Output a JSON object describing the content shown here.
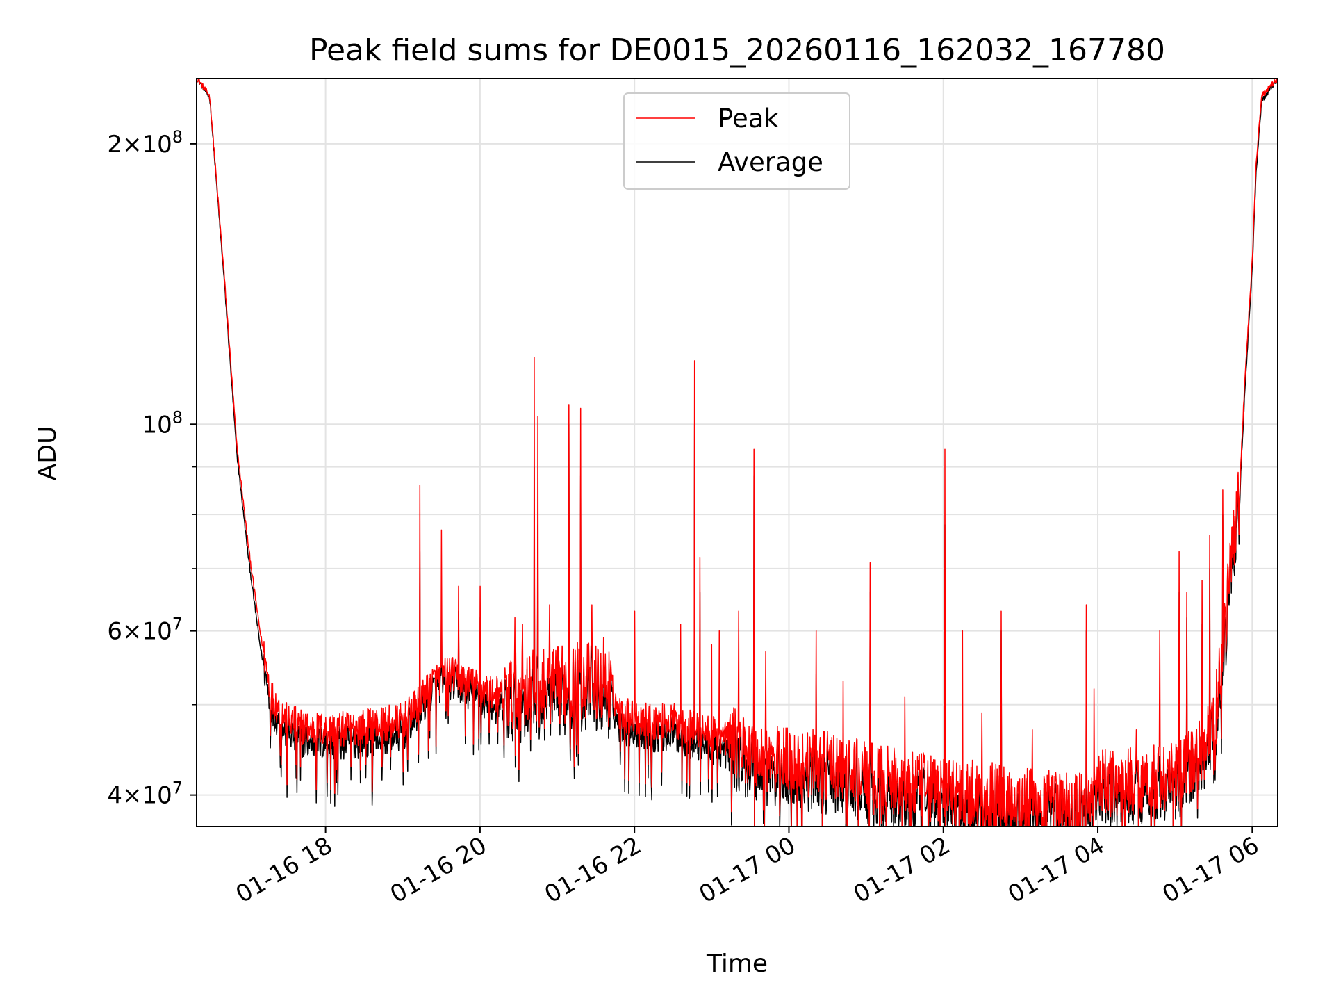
{
  "chart_data": {
    "type": "line",
    "title": "Peak field sums for DE0015_20260116_162032_167780",
    "xlabel": "Time",
    "ylabel": "ADU",
    "y_scale": "log",
    "ylim": [
      37000000,
      235000000
    ],
    "x_units": "hours since 01-16 00:00",
    "xlim": [
      16.33,
      30.33
    ],
    "grid": true,
    "legend_position": "upper center",
    "x_ticks": [
      {
        "value": 18,
        "label": "01-16 18"
      },
      {
        "value": 20,
        "label": "01-16 20"
      },
      {
        "value": 22,
        "label": "01-16 22"
      },
      {
        "value": 24,
        "label": "01-17 00"
      },
      {
        "value": 26,
        "label": "01-17 02"
      },
      {
        "value": 28,
        "label": "01-17 04"
      },
      {
        "value": 30,
        "label": "01-17 06"
      }
    ],
    "y_major_ticks": [
      {
        "value": 40000000,
        "mantissa": "4",
        "label": "4 × 10^7"
      },
      {
        "value": 60000000,
        "mantissa": "6",
        "label": "6 × 10^7"
      },
      {
        "value": 100000000,
        "mantissa": "",
        "label": "10^8"
      },
      {
        "value": 200000000,
        "mantissa": "2",
        "label": "2 × 10^8"
      }
    ],
    "y_minor_ticks": [
      50000000,
      70000000,
      80000000,
      90000000
    ],
    "series": [
      {
        "name": "Peak",
        "color": "#ff0000",
        "base": [
          [
            16.34,
            235000000
          ],
          [
            16.5,
            225000000
          ],
          [
            16.7,
            140000000
          ],
          [
            16.85,
            95000000
          ],
          [
            17.0,
            74000000
          ],
          [
            17.15,
            60000000
          ],
          [
            17.3,
            51000000
          ],
          [
            17.5,
            48000000
          ],
          [
            17.8,
            47000000
          ],
          [
            18.2,
            47000000
          ],
          [
            18.6,
            47500000
          ],
          [
            19.0,
            48000000
          ],
          [
            19.2,
            50000000
          ],
          [
            19.4,
            53000000
          ],
          [
            19.6,
            54000000
          ],
          [
            19.8,
            53000000
          ],
          [
            20.0,
            52000000
          ],
          [
            20.3,
            51000000
          ],
          [
            20.6,
            52000000
          ],
          [
            20.9,
            52000000
          ],
          [
            21.2,
            53000000
          ],
          [
            21.5,
            53000000
          ],
          [
            21.7,
            52000000
          ],
          [
            21.8,
            49000000
          ],
          [
            22.2,
            48000000
          ],
          [
            22.5,
            48000000
          ],
          [
            22.8,
            47000000
          ],
          [
            23.2,
            46000000
          ],
          [
            23.6,
            44000000
          ],
          [
            24.0,
            43500000
          ],
          [
            24.5,
            43000000
          ],
          [
            25.0,
            42000000
          ],
          [
            25.5,
            41000000
          ],
          [
            26.0,
            40500000
          ],
          [
            26.5,
            40000000
          ],
          [
            27.0,
            39500000
          ],
          [
            27.5,
            39000000
          ],
          [
            27.8,
            39000000
          ],
          [
            28.0,
            41000000
          ],
          [
            28.5,
            41500000
          ],
          [
            29.0,
            42000000
          ],
          [
            29.3,
            44000000
          ],
          [
            29.5,
            47000000
          ],
          [
            29.6,
            56000000
          ],
          [
            29.7,
            68000000
          ],
          [
            29.8,
            82000000
          ],
          [
            29.85,
            90000000
          ],
          [
            29.9,
            110000000
          ],
          [
            30.0,
            150000000
          ],
          [
            30.05,
            190000000
          ],
          [
            30.12,
            225000000
          ],
          [
            30.33,
            235000000
          ]
        ],
        "spikes": [
          [
            19.22,
            86000000
          ],
          [
            19.5,
            77000000
          ],
          [
            19.72,
            67000000
          ],
          [
            20.0,
            67000000
          ],
          [
            20.45,
            62000000
          ],
          [
            20.55,
            61000000
          ],
          [
            20.7,
            118000000
          ],
          [
            20.75,
            102000000
          ],
          [
            20.9,
            64000000
          ],
          [
            21.15,
            105000000
          ],
          [
            21.3,
            104000000
          ],
          [
            21.45,
            64000000
          ],
          [
            21.6,
            59000000
          ],
          [
            22.0,
            63000000
          ],
          [
            22.6,
            61000000
          ],
          [
            22.78,
            117000000
          ],
          [
            22.85,
            72000000
          ],
          [
            23.0,
            58000000
          ],
          [
            23.1,
            60000000
          ],
          [
            23.35,
            63000000
          ],
          [
            23.55,
            94000000
          ],
          [
            23.7,
            57000000
          ],
          [
            24.35,
            60000000
          ],
          [
            24.7,
            53000000
          ],
          [
            25.05,
            71000000
          ],
          [
            25.5,
            51000000
          ],
          [
            26.02,
            94000000
          ],
          [
            26.25,
            60000000
          ],
          [
            26.5,
            49000000
          ],
          [
            26.75,
            63000000
          ],
          [
            27.15,
            47000000
          ],
          [
            27.85,
            64000000
          ],
          [
            27.95,
            52000000
          ],
          [
            28.5,
            47000000
          ],
          [
            28.8,
            60000000
          ],
          [
            29.05,
            73000000
          ],
          [
            29.15,
            66000000
          ],
          [
            29.35,
            68000000
          ],
          [
            29.45,
            76000000
          ],
          [
            29.62,
            85000000
          ]
        ],
        "noise_amplitude": 0.045,
        "samples": 2400
      },
      {
        "name": "Average",
        "color": "#000000",
        "base": [
          [
            16.34,
            235000000
          ],
          [
            16.5,
            224000000
          ],
          [
            16.7,
            138000000
          ],
          [
            16.85,
            93000000
          ],
          [
            17.0,
            72000000
          ],
          [
            17.15,
            58000000
          ],
          [
            17.3,
            49500000
          ],
          [
            17.5,
            46500000
          ],
          [
            17.8,
            45500000
          ],
          [
            18.2,
            45500000
          ],
          [
            18.6,
            46000000
          ],
          [
            19.0,
            46500000
          ],
          [
            19.2,
            49000000
          ],
          [
            19.4,
            52000000
          ],
          [
            19.6,
            53000000
          ],
          [
            19.8,
            52000000
          ],
          [
            20.0,
            50500000
          ],
          [
            20.3,
            49500000
          ],
          [
            20.6,
            50500000
          ],
          [
            20.9,
            50500000
          ],
          [
            21.2,
            51500000
          ],
          [
            21.5,
            51500000
          ],
          [
            21.7,
            50500000
          ],
          [
            21.8,
            47500000
          ],
          [
            22.2,
            46500000
          ],
          [
            22.5,
            46500000
          ],
          [
            22.8,
            45500000
          ],
          [
            23.2,
            44500000
          ],
          [
            23.6,
            42500000
          ],
          [
            24.0,
            42000000
          ],
          [
            24.5,
            41500000
          ],
          [
            25.0,
            40500000
          ],
          [
            25.5,
            39500000
          ],
          [
            26.0,
            39000000
          ],
          [
            26.5,
            38800000
          ],
          [
            27.0,
            38300000
          ],
          [
            27.5,
            37900000
          ],
          [
            27.8,
            37900000
          ],
          [
            28.0,
            40000000
          ],
          [
            28.5,
            40500000
          ],
          [
            29.0,
            41000000
          ],
          [
            29.3,
            43000000
          ],
          [
            29.5,
            46000000
          ],
          [
            29.6,
            54000000
          ],
          [
            29.7,
            66000000
          ],
          [
            29.8,
            80000000
          ],
          [
            29.85,
            88000000
          ],
          [
            29.9,
            107000000
          ],
          [
            30.0,
            147000000
          ],
          [
            30.05,
            186000000
          ],
          [
            30.12,
            222000000
          ],
          [
            30.33,
            235000000
          ]
        ],
        "spikes": [
          [
            19.22,
            73000000
          ],
          [
            19.5,
            65000000
          ],
          [
            19.72,
            63000000
          ],
          [
            20.0,
            62000000
          ],
          [
            20.7,
            90000000
          ],
          [
            20.75,
            78000000
          ],
          [
            21.15,
            100000000
          ],
          [
            21.3,
            88000000
          ],
          [
            21.45,
            58000000
          ],
          [
            22.78,
            100000000
          ],
          [
            22.85,
            66000000
          ],
          [
            23.55,
            88000000
          ],
          [
            24.35,
            54000000
          ],
          [
            25.05,
            66000000
          ],
          [
            26.02,
            78000000
          ],
          [
            26.75,
            60000000
          ],
          [
            27.85,
            60000000
          ],
          [
            29.05,
            66000000
          ],
          [
            29.15,
            62000000
          ],
          [
            29.35,
            61000000
          ],
          [
            29.45,
            70000000
          ],
          [
            29.62,
            80000000
          ]
        ],
        "noise_amplitude": 0.045,
        "samples": 2400
      }
    ]
  }
}
